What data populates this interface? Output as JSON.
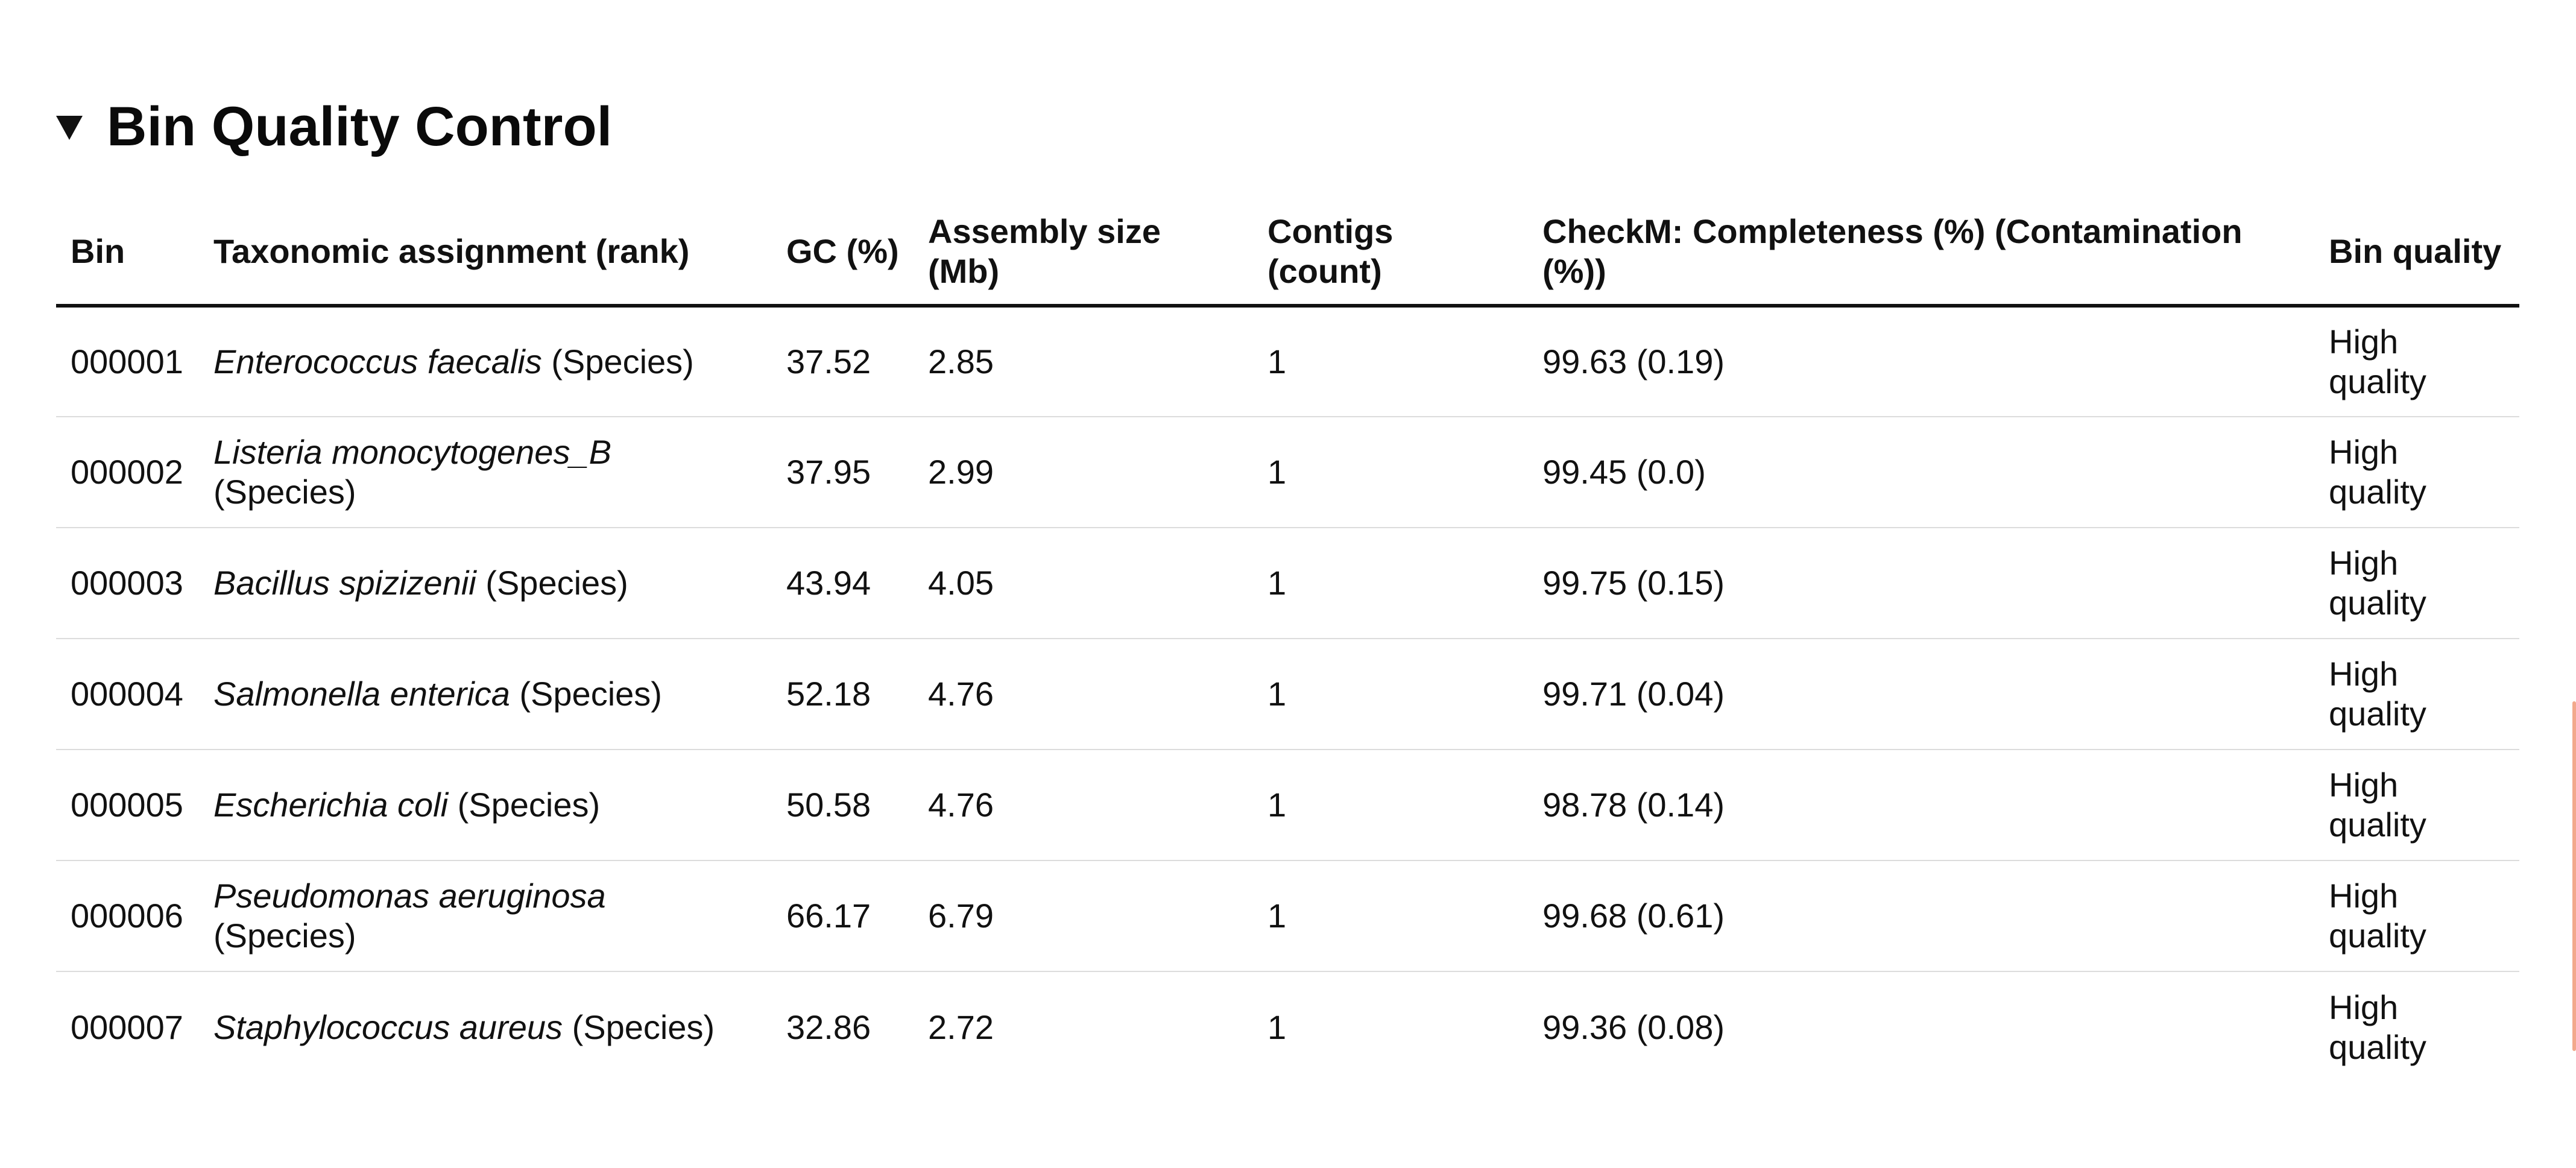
{
  "section": {
    "title": "Bin Quality Control",
    "toggle_icon": "triangle-down-icon"
  },
  "table": {
    "headers": {
      "bin": "Bin",
      "taxonomy": "Taxonomic assignment (rank)",
      "gc": "GC (%)",
      "assembly_size": "Assembly size (Mb)",
      "contigs": "Contigs (count)",
      "checkm": "CheckM: Completeness (%) (Contamination (%))",
      "quality": "Bin quality"
    },
    "rows": [
      {
        "bin": "000001",
        "species": "Enterococcus faecalis",
        "rank": " (Species)",
        "gc": "37.52",
        "size": "2.85",
        "contigs": "1",
        "checkm": "99.63 (0.19)",
        "quality": "High quality"
      },
      {
        "bin": "000002",
        "species": "Listeria monocytogenes_B",
        "rank": " (Species)",
        "gc": "37.95",
        "size": "2.99",
        "contigs": "1",
        "checkm": "99.45 (0.0)",
        "quality": "High quality"
      },
      {
        "bin": "000003",
        "species": "Bacillus spizizenii",
        "rank": " (Species)",
        "gc": "43.94",
        "size": "4.05",
        "contigs": "1",
        "checkm": "99.75 (0.15)",
        "quality": "High quality"
      },
      {
        "bin": "000004",
        "species": "Salmonella enterica",
        "rank": " (Species)",
        "gc": "52.18",
        "size": "4.76",
        "contigs": "1",
        "checkm": "99.71 (0.04)",
        "quality": "High quality"
      },
      {
        "bin": "000005",
        "species": "Escherichia coli",
        "rank": " (Species)",
        "gc": "50.58",
        "size": "4.76",
        "contigs": "1",
        "checkm": "98.78 (0.14)",
        "quality": "High quality"
      },
      {
        "bin": "000006",
        "species": "Pseudomonas aeruginosa",
        "rank": " (Species)",
        "gc": "66.17",
        "size": "6.79",
        "contigs": "1",
        "checkm": "99.68 (0.61)",
        "quality": "High quality"
      },
      {
        "bin": "000007",
        "species": "Staphylococcus aureus",
        "rank": " (Species)",
        "gc": "32.86",
        "size": "2.72",
        "contigs": "1",
        "checkm": "99.36 (0.08)",
        "quality": "High quality"
      }
    ]
  },
  "colors": {
    "scrollbar": "#f2a98c",
    "header_rule": "#111111",
    "row_divider": "#dcdcdc"
  }
}
